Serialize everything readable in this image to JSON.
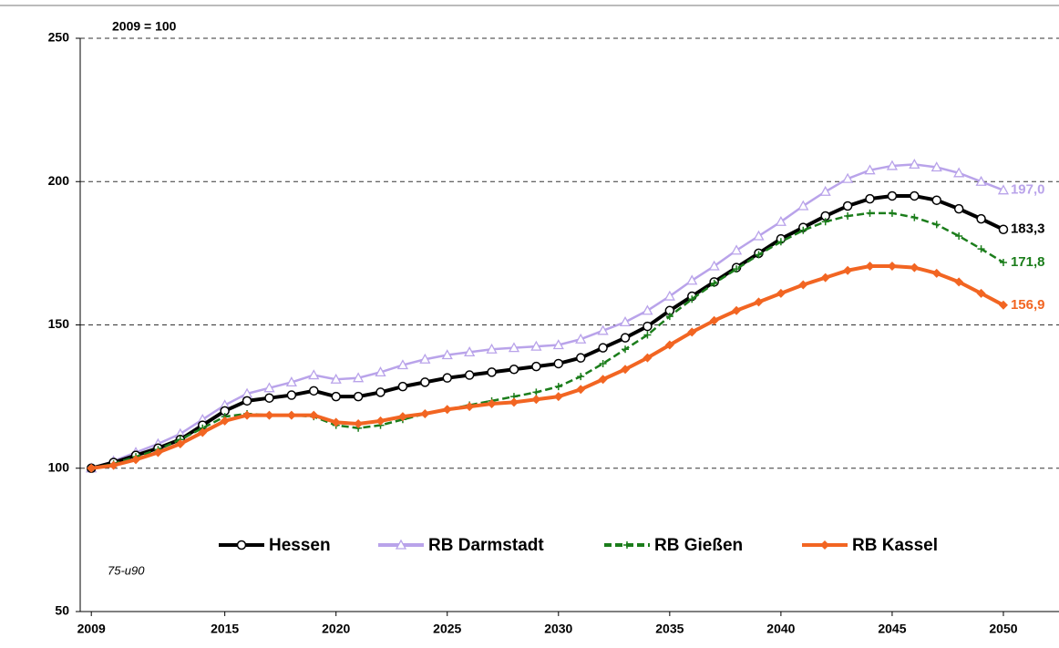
{
  "chart_data": {
    "type": "line",
    "annotations": [
      "2009 = 100",
      "75-u90"
    ],
    "x": [
      2009,
      2010,
      2011,
      2012,
      2013,
      2014,
      2015,
      2016,
      2017,
      2018,
      2019,
      2020,
      2021,
      2022,
      2023,
      2024,
      2025,
      2026,
      2027,
      2028,
      2029,
      2030,
      2031,
      2032,
      2033,
      2034,
      2035,
      2036,
      2037,
      2038,
      2039,
      2040,
      2041,
      2042,
      2043,
      2044,
      2045,
      2046,
      2047,
      2048,
      2049,
      2050
    ],
    "xlim": [
      2008.5,
      2052.5
    ],
    "xticks": [
      2009,
      2015,
      2020,
      2025,
      2030,
      2035,
      2040,
      2045,
      2050
    ],
    "ylim": [
      50,
      250
    ],
    "yticks": [
      50,
      100,
      150,
      200,
      250
    ],
    "grid": true,
    "legend": "bottom",
    "series": [
      {
        "name": "Hessen",
        "color": "#000000",
        "marker": "circle",
        "values": [
          100,
          102,
          104.5,
          107,
          110,
          115,
          120,
          123.5,
          124.5,
          125.5,
          127,
          125,
          125,
          126.5,
          128.5,
          130,
          131.5,
          132.5,
          133.5,
          134.5,
          135.5,
          136.5,
          138.5,
          142,
          145.5,
          149.5,
          155,
          160,
          165,
          170,
          175,
          180,
          184,
          188,
          191.5,
          194,
          195,
          195,
          193.5,
          190.5,
          187,
          183.3
        ],
        "value_labels": [
          null,
          null,
          null,
          null,
          null,
          null,
          null,
          null,
          null,
          null,
          null,
          null,
          null,
          null,
          null,
          null,
          null,
          null,
          null,
          null,
          null,
          null,
          null,
          null,
          null,
          null,
          null,
          null,
          null,
          null,
          null,
          null,
          null,
          null,
          null,
          null,
          null,
          null,
          null,
          null,
          null,
          "183,3"
        ]
      },
      {
        "name": "RB Darmstadt",
        "color": "#b9a3ea",
        "marker": "triangle",
        "values": [
          100,
          102.5,
          105.5,
          108.5,
          112,
          117,
          122,
          126,
          128,
          130,
          132.5,
          131,
          131.5,
          133.5,
          136,
          138,
          139.5,
          140.5,
          141.5,
          142,
          142.5,
          143,
          145,
          148,
          151,
          155,
          160,
          165.5,
          170.5,
          176,
          181,
          186,
          191.5,
          196.5,
          201,
          204,
          205.5,
          206,
          205,
          203,
          200,
          197.0
        ],
        "value_labels": [
          null,
          null,
          null,
          null,
          null,
          null,
          null,
          null,
          null,
          null,
          null,
          null,
          null,
          null,
          null,
          null,
          null,
          null,
          null,
          null,
          null,
          null,
          null,
          null,
          null,
          null,
          null,
          null,
          null,
          null,
          null,
          null,
          null,
          null,
          null,
          null,
          null,
          null,
          null,
          null,
          null,
          "197,0"
        ]
      },
      {
        "name": "RB Gießen",
        "color": "#1b7d1b",
        "marker": "plus",
        "dash": true,
        "values": [
          100,
          101.5,
          104,
          106.5,
          110,
          114,
          118,
          119,
          118.5,
          118.5,
          118,
          115,
          114,
          115,
          117,
          119,
          120.5,
          122,
          123.5,
          125,
          126.5,
          128.5,
          132,
          136.5,
          141.5,
          146.5,
          153,
          159,
          164.5,
          169.5,
          174.5,
          179,
          183,
          186,
          188,
          189,
          189,
          187.5,
          185,
          181,
          176.5,
          171.8
        ],
        "value_labels": [
          null,
          null,
          null,
          null,
          null,
          null,
          null,
          null,
          null,
          null,
          null,
          null,
          null,
          null,
          null,
          null,
          null,
          null,
          null,
          null,
          null,
          null,
          null,
          null,
          null,
          null,
          null,
          null,
          null,
          null,
          null,
          null,
          null,
          null,
          null,
          null,
          null,
          null,
          null,
          null,
          null,
          "171,8"
        ]
      },
      {
        "name": "RB Kassel",
        "color": "#f26522",
        "marker": "diamond",
        "values": [
          100,
          101,
          103,
          105.5,
          108.5,
          112.5,
          116.5,
          118.5,
          118.5,
          118.5,
          118.5,
          116,
          115.5,
          116.5,
          118,
          119,
          120.5,
          121.5,
          122.5,
          123,
          124,
          125,
          127.5,
          131,
          134.5,
          138.5,
          143,
          147.5,
          151.5,
          155,
          158,
          161,
          164,
          166.5,
          169,
          170.5,
          170.5,
          170,
          168,
          165,
          161,
          156.9
        ],
        "value_labels": [
          null,
          null,
          null,
          null,
          null,
          null,
          null,
          null,
          null,
          null,
          null,
          null,
          null,
          null,
          null,
          null,
          null,
          null,
          null,
          null,
          null,
          null,
          null,
          null,
          null,
          null,
          null,
          null,
          null,
          null,
          null,
          null,
          null,
          null,
          null,
          null,
          null,
          null,
          null,
          null,
          null,
          "156,9"
        ]
      }
    ]
  }
}
